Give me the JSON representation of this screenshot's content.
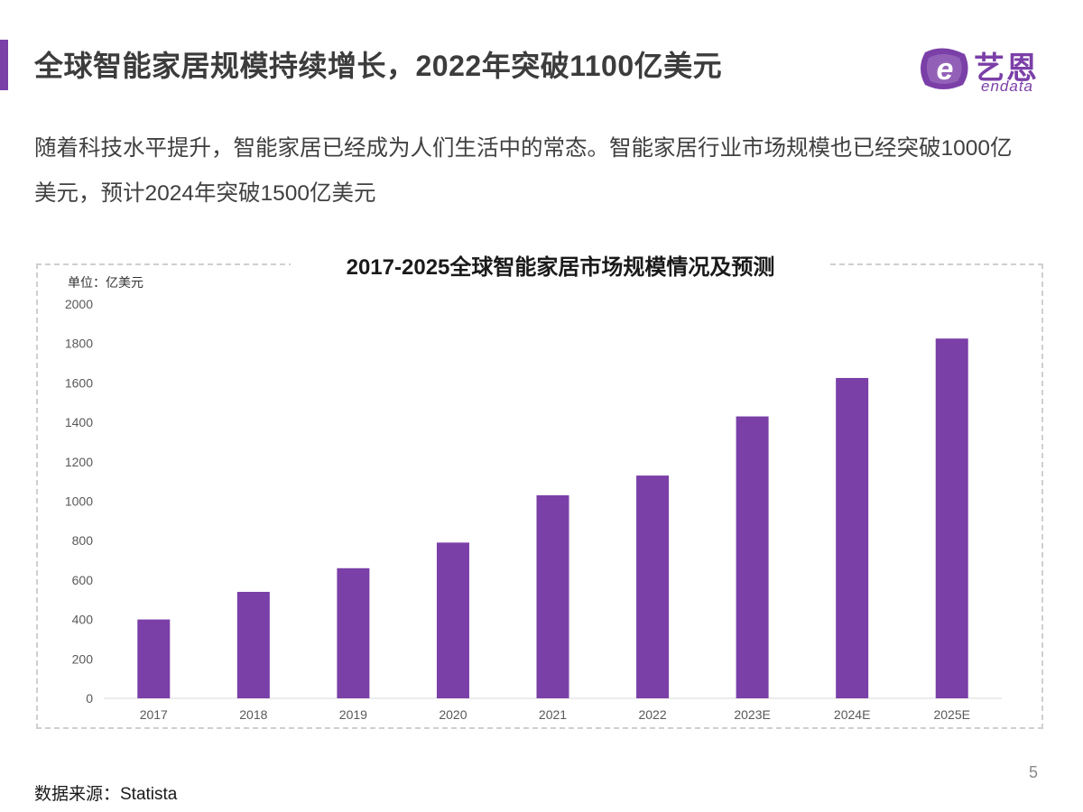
{
  "header": {
    "title": "全球智能家居规模持续增长，2022年突破1100亿美元"
  },
  "logo": {
    "cn_text": "艺恩",
    "en_text": "endata"
  },
  "intro": {
    "text": "随着科技水平提升，智能家居已经成为人们生活中的常态。智能家居行业市场规模也已经突破1000亿美元，预计2024年突破1500亿美元"
  },
  "chart_data": {
    "type": "bar",
    "title": "2017-2025全球智能家居市场规模情况及预测",
    "unit_label": "单位：亿美元",
    "categories": [
      "2017",
      "2018",
      "2019",
      "2020",
      "2021",
      "2022",
      "2023E",
      "2024E",
      "2025E"
    ],
    "values": [
      400,
      540,
      660,
      790,
      1030,
      1130,
      1430,
      1625,
      1825
    ],
    "ylim": [
      0,
      2000
    ],
    "yticks": [
      0,
      200,
      400,
      600,
      800,
      1000,
      1200,
      1400,
      1600,
      1800,
      2000
    ],
    "grid": false,
    "bar_color": "#7b3fa8"
  },
  "footer": {
    "source": "数据来源：Statista",
    "page_number": "5"
  },
  "colors": {
    "accent": "#7b3fa8",
    "title_text": "#3c3c3c",
    "axis_text": "#595959"
  }
}
